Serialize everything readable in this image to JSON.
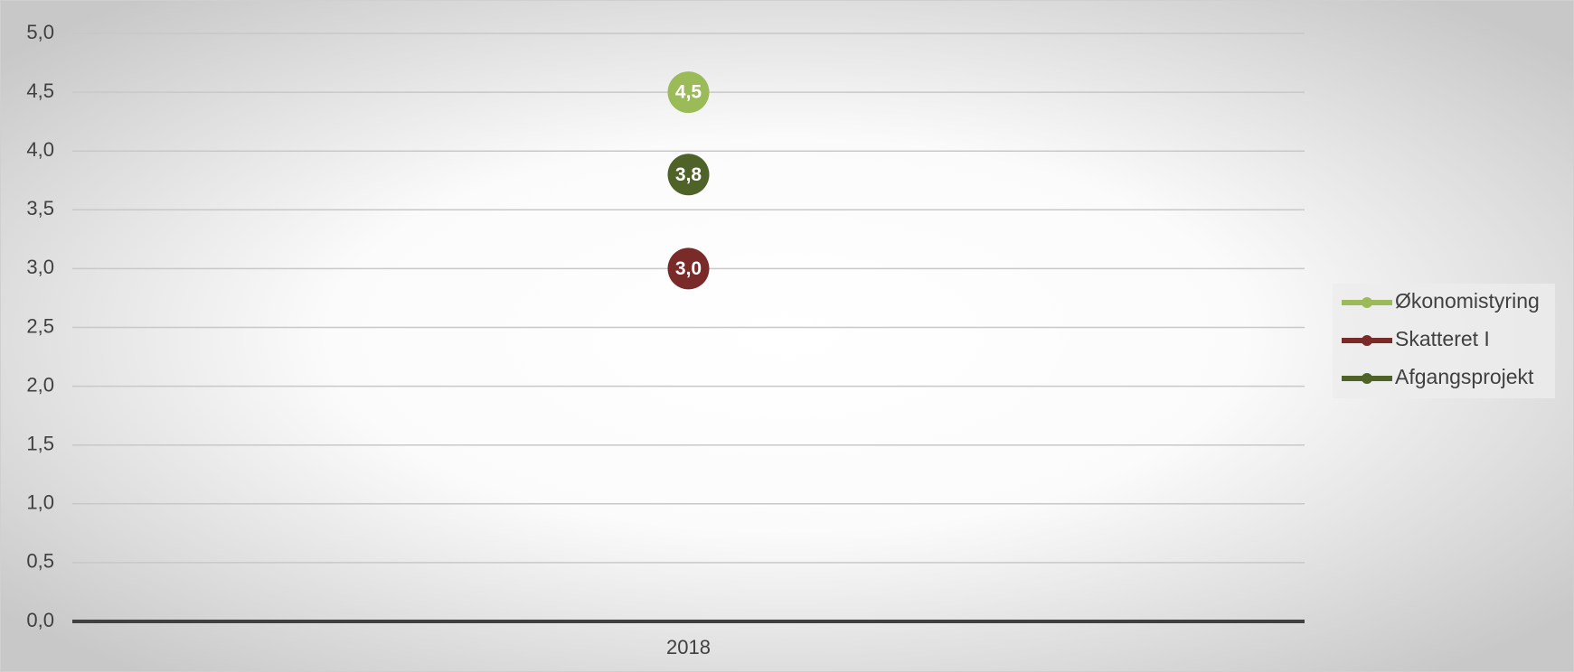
{
  "chart_data": {
    "type": "line",
    "categories": [
      "2018"
    ],
    "series": [
      {
        "name": "Økonomistyring",
        "color": "#9bbb59",
        "values": [
          4.5
        ],
        "value_labels": [
          "4,5"
        ]
      },
      {
        "name": "Skatteret I",
        "color": "#7b2a2a",
        "values": [
          3.0
        ],
        "value_labels": [
          "3,0"
        ]
      },
      {
        "name": "Afgangsprojekt",
        "color": "#4f6228",
        "values": [
          3.8
        ],
        "value_labels": [
          "3,8"
        ]
      }
    ],
    "ylim": [
      0,
      5
    ],
    "yticks": [
      {
        "value": 0,
        "label": "0,0"
      },
      {
        "value": 0.5,
        "label": "0,5"
      },
      {
        "value": 1,
        "label": "1,0"
      },
      {
        "value": 1.5,
        "label": "1,5"
      },
      {
        "value": 2,
        "label": "2,0"
      },
      {
        "value": 2.5,
        "label": "2,5"
      },
      {
        "value": 3,
        "label": "3,0"
      },
      {
        "value": 3.5,
        "label": "3,5"
      },
      {
        "value": 4,
        "label": "4,0"
      },
      {
        "value": 4.5,
        "label": "4,5"
      },
      {
        "value": 5,
        "label": "5,0"
      }
    ],
    "grid": true,
    "legend": "right"
  }
}
